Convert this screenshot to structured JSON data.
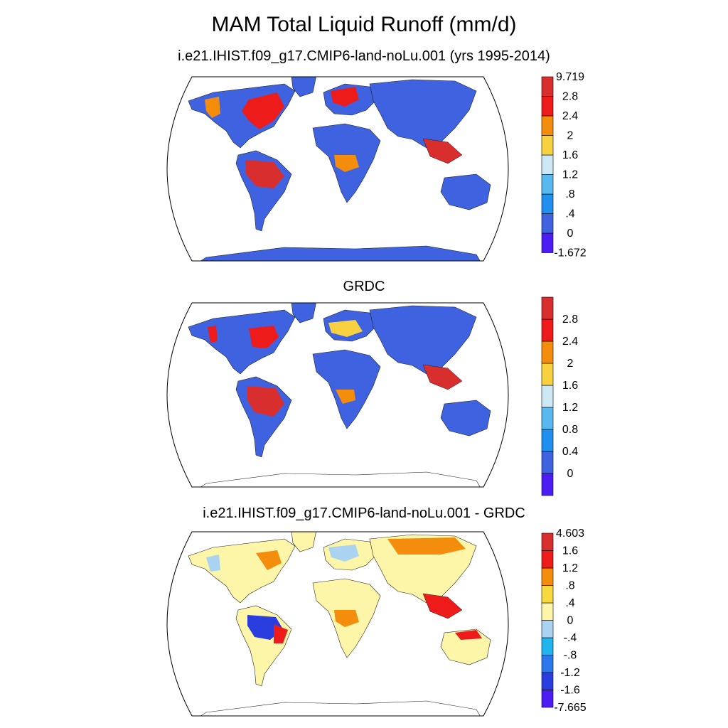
{
  "title": "MAM Total Liquid Runoff (mm/d)",
  "panels": [
    {
      "title": "i.e21.IHIST.f09_g17.CMIP6-land-noLu.001 (yrs 1995-2014)",
      "colorbar": {
        "colors": [
          "#4b1df2",
          "#3f62e1",
          "#1f8ff0",
          "#57b9f0",
          "#cde7f5",
          "#f7d140",
          "#f48d0c",
          "#ee1b1b",
          "#d92e2e"
        ],
        "labels": [
          "-1.672",
          "0",
          ".4",
          ".8",
          "1.2",
          "1.6",
          "2",
          "2.4",
          "2.8",
          "9.719"
        ]
      }
    },
    {
      "title": "GRDC",
      "colorbar": {
        "colors": [
          "#4b1df2",
          "#3f62e1",
          "#1f8ff0",
          "#57b9f0",
          "#cde7f5",
          "#f7d140",
          "#f48d0c",
          "#ee1b1b",
          "#d92e2e"
        ],
        "labels": [
          "0",
          "0.4",
          "0.8",
          "1.2",
          "1.6",
          "2",
          "2.4",
          "2.8"
        ]
      }
    },
    {
      "title": "i.e21.IHIST.f09_g17.CMIP6-land-noLu.001 - GRDC",
      "colorbar": {
        "colors": [
          "#4b1df2",
          "#2a3ee0",
          "#2b78ea",
          "#20b5ef",
          "#a9d3f0",
          "#fdf5a8",
          "#f8d940",
          "#f48d0c",
          "#ee1b1b",
          "#d92e2e"
        ],
        "labels": [
          "-7.665",
          "-1.6",
          "-1.2",
          "-.8",
          "-.4",
          "0",
          ".4",
          ".8",
          "1.2",
          "1.6",
          "4.603"
        ]
      }
    }
  ]
}
